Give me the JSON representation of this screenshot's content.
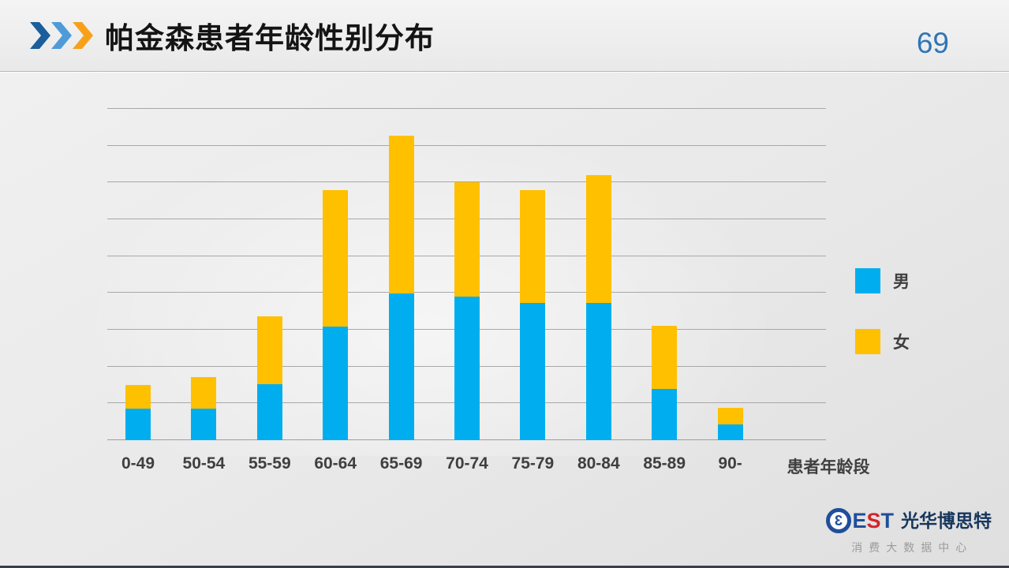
{
  "header": {
    "title": "帕金森患者年龄性别分布",
    "page_number": "69"
  },
  "chart_data": {
    "type": "bar",
    "stacked": true,
    "title": "帕金森患者年龄性别分布",
    "categories": [
      "0-49",
      "50-54",
      "55-59",
      "60-64",
      "65-69",
      "70-74",
      "75-79",
      "80-84",
      "85-89",
      "90-"
    ],
    "series": [
      {
        "name": "男",
        "color": "#00AEEF",
        "values": [
          0.86,
          0.86,
          1.52,
          3.09,
          3.99,
          3.9,
          3.73,
          3.73,
          1.39,
          0.43
        ]
      },
      {
        "name": "女",
        "color": "#FFC000",
        "values": [
          0.64,
          0.85,
          1.84,
          3.7,
          4.28,
          3.11,
          3.06,
          3.47,
          1.72,
          0.45
        ]
      }
    ],
    "xlabel": "患者年龄段",
    "ylabel": "",
    "ylim": [
      0,
      9
    ],
    "gridline_interval": 1,
    "grid": true,
    "y_tick_labels_visible": false,
    "legend_position": "right",
    "note": "y-axis shows no numeric tick labels; values estimated in gridline units (1 unit = 1 gridline interval, 9 intervals total)"
  },
  "footer": {
    "logo_mark": "3",
    "logo_text": "EST",
    "logo_name": "光华博思特",
    "logo_subtitle": "消费大数据中心"
  },
  "colors": {
    "male_bar": "#00AEEF",
    "female_bar": "#FFC000",
    "page_number": "#2e75b6",
    "chevrons": [
      "#1b5e9b",
      "#4f9bd8",
      "#f7a11a"
    ],
    "logo_letter_colors": [
      "#1f4e9c",
      "#d3262a",
      "#1f4e9c"
    ],
    "gridline": "#a8a8a8"
  }
}
